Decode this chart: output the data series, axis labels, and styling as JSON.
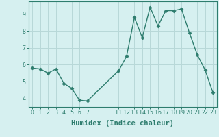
{
  "x": [
    0,
    1,
    2,
    3,
    4,
    5,
    6,
    7,
    11,
    12,
    13,
    14,
    15,
    16,
    17,
    18,
    19,
    20,
    21,
    22,
    23
  ],
  "y": [
    5.8,
    5.75,
    5.5,
    5.75,
    4.9,
    4.6,
    3.9,
    3.85,
    5.65,
    6.5,
    8.8,
    7.6,
    9.4,
    8.3,
    9.2,
    9.2,
    9.3,
    7.9,
    6.6,
    5.7,
    4.35
  ],
  "line_color": "#2e7d6e",
  "marker": "D",
  "marker_size": 2.5,
  "bg_color": "#d6f0f0",
  "grid_color": "#b8d8d8",
  "xlabel": "Humidex (Indice chaleur)",
  "xlabel_fontsize": 7.5,
  "yticks": [
    4,
    5,
    6,
    7,
    8,
    9
  ],
  "xticks": [
    0,
    1,
    2,
    3,
    4,
    5,
    6,
    7,
    11,
    12,
    13,
    14,
    15,
    16,
    17,
    18,
    19,
    20,
    21,
    22,
    23
  ],
  "ylim": [
    3.5,
    9.75
  ],
  "xlim": [
    -0.5,
    23.5
  ],
  "tick_fontsize": 6,
  "line_width": 1.0,
  "tick_color": "#2e7d6e",
  "spine_color": "#2e7d6e"
}
